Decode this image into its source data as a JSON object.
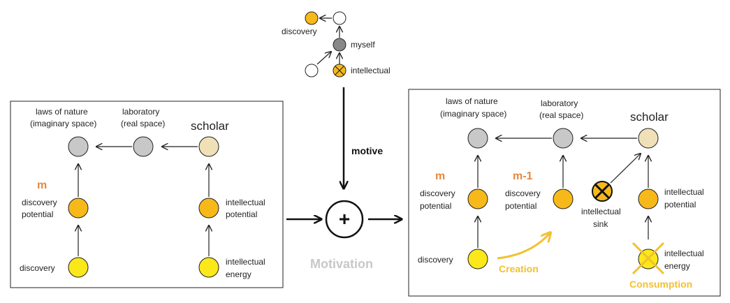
{
  "top_legend": {
    "discovery": "discovery",
    "myself": "myself",
    "intellectual": "intellectual"
  },
  "left_panel": {
    "laws_line1": "laws of nature",
    "laws_line2": "(imaginary space)",
    "lab_line1": "laboratory",
    "lab_line2": "(real space)",
    "scholar": "scholar",
    "m": "m",
    "disc_pot_line1": "discovery",
    "disc_pot_line2": "potential",
    "int_pot_line1": "intellectual",
    "int_pot_line2": "potential",
    "discovery": "discovery",
    "int_energy_line1": "intellectual",
    "int_energy_line2": "energy"
  },
  "center": {
    "motive": "motive",
    "plus": "+",
    "motivation": "Motivation"
  },
  "right_panel": {
    "laws_line1": "laws of nature",
    "laws_line2": "(imaginary space)",
    "lab_line1": "laboratory",
    "lab_line2": "(real space)",
    "scholar": "scholar",
    "m": "m",
    "m_minus_1": "m-1",
    "disc_pot_line1": "discovery",
    "disc_pot_line2": "potential",
    "disc_pot2_line1": "discovery",
    "disc_pot2_line2": "potential",
    "sink_line1": "intellectual",
    "sink_line2": "sink",
    "int_pot_line1": "intellectual",
    "int_pot_line2": "potential",
    "discovery": "discovery",
    "int_energy_line1": "intellectual",
    "int_energy_line2": "energy",
    "creation": "Creation",
    "consumption": "Consumption"
  },
  "colors": {
    "gray_node": "#c8c8c8",
    "dark_node": "#888888",
    "scholar_node": "#efe0b8",
    "orange_node": "#f7b91a",
    "yellow_node": "#fbe81a",
    "accent_orange": "#e8873a",
    "accent_yellow": "#f2c12e"
  }
}
